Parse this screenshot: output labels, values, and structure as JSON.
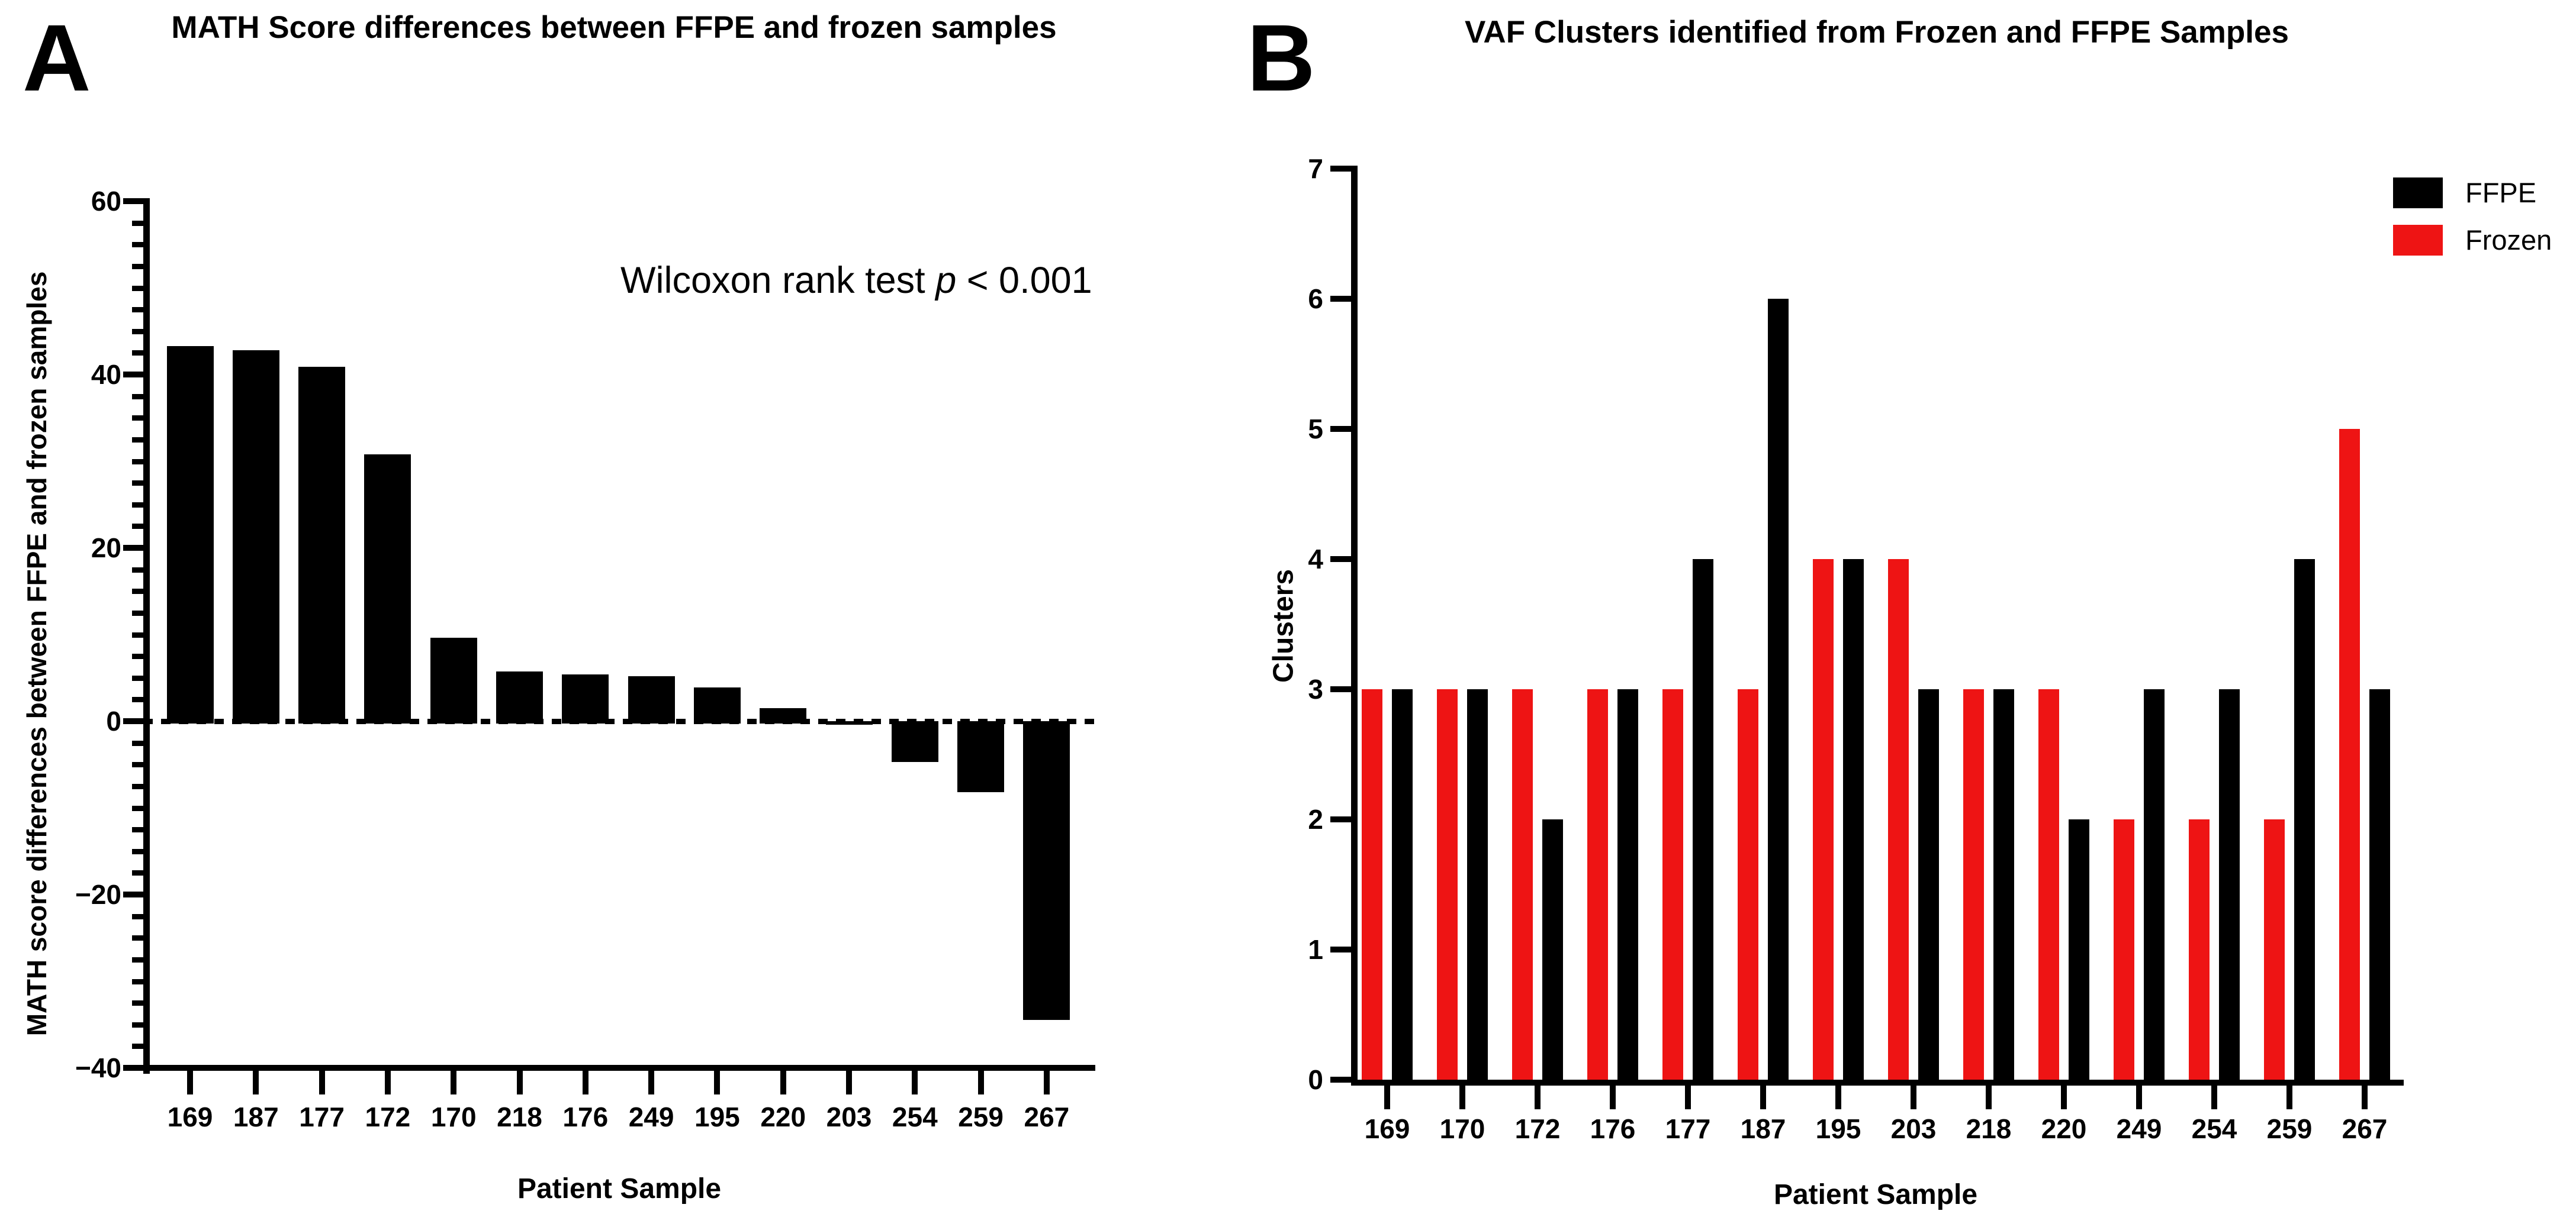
{
  "panels": [
    {
      "letter": "A"
    },
    {
      "letter": "B"
    }
  ],
  "annotation_parts": {
    "before": "Wilcoxon rank test ",
    "italic": "p",
    "after": " < 0.001"
  },
  "legend": {
    "position": "top-right",
    "items": [
      {
        "label": "FFPE",
        "color": "#000000"
      },
      {
        "label": "Frozen",
        "color": "#EE1414"
      }
    ]
  },
  "chart_data": [
    {
      "type": "bar",
      "title": "MATH Score differences between FFPE and frozen samples",
      "xlabel": "Patient Sample",
      "ylabel": "MATH score differences between FFPE and frozen samples",
      "categories": [
        "169",
        "187",
        "177",
        "172",
        "170",
        "218",
        "176",
        "249",
        "195",
        "220",
        "203",
        "254",
        "259",
        "267"
      ],
      "values": [
        43.3,
        42.8,
        40.9,
        30.8,
        9.6,
        5.7,
        5.4,
        5.2,
        3.9,
        1.5,
        -0.4,
        -4.7,
        -8.2,
        -34.5
      ],
      "bar_color": "#000000",
      "ylim": [
        -40,
        60
      ],
      "ytick_step": 20,
      "ytick_minor_step": 2.5,
      "yticks": [
        "60",
        "40",
        "20",
        "0",
        "−20",
        "−40"
      ],
      "ytick_values": [
        60,
        40,
        20,
        0,
        -20,
        -40
      ],
      "zero_line": "dashed",
      "annotation": "Wilcoxon rank test p < 0.001",
      "grid": false
    },
    {
      "type": "bar",
      "title": "VAF Clusters identified from Frozen and FFPE Samples",
      "xlabel": "Patient Sample",
      "ylabel": "Clusters",
      "categories": [
        "169",
        "170",
        "172",
        "176",
        "177",
        "187",
        "195",
        "203",
        "218",
        "220",
        "249",
        "254",
        "259",
        "267"
      ],
      "series": [
        {
          "name": "FFPE",
          "color": "#000000",
          "values": [
            3,
            3,
            2,
            3,
            4,
            6,
            4,
            3,
            3,
            2,
            3,
            3,
            4,
            3
          ]
        },
        {
          "name": "Frozen",
          "color": "#EE1414",
          "values": [
            3,
            3,
            3,
            3,
            3,
            3,
            4,
            4,
            3,
            3,
            2,
            2,
            2,
            5
          ]
        }
      ],
      "bar_order_in_pair": [
        "Frozen",
        "FFPE"
      ],
      "ylim": [
        0,
        7
      ],
      "ytick_step": 1,
      "yticks": [
        "0",
        "1",
        "2",
        "3",
        "4",
        "5",
        "6",
        "7"
      ],
      "ytick_values": [
        0,
        1,
        2,
        3,
        4,
        5,
        6,
        7
      ],
      "legend_position": "top-right",
      "grid": false
    }
  ]
}
